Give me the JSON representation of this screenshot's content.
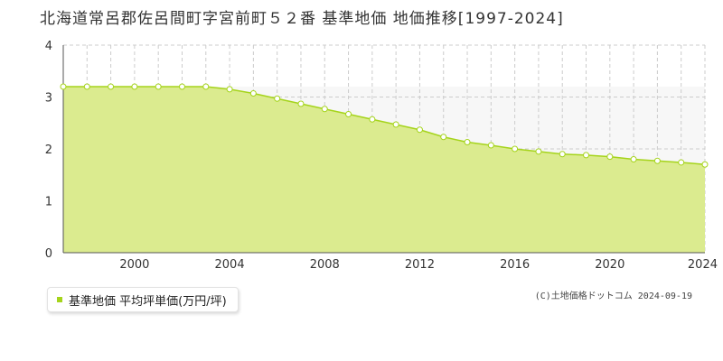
{
  "title": "北海道常呂郡佐呂間町字宮前町５２番 基準地価 地価推移[1997-2024]",
  "credit": "(C)土地価格ドットコム 2024-09-19",
  "colors": {
    "area_fill": "#dbeb8f",
    "line": "#a5d41b",
    "marker_fill": "#ffffff",
    "marker_stroke": "#a5d41b",
    "upper_band": "#f7f7f7",
    "grid": "#cccccc",
    "axis": "#555555",
    "text": "#333333"
  },
  "chart_data": {
    "type": "area",
    "title": "",
    "xlabel": "",
    "ylabel": "",
    "xlim": [
      1997,
      2024
    ],
    "ylim": [
      0,
      4
    ],
    "x_ticks": [
      "2000",
      "2004",
      "2008",
      "2012",
      "2016",
      "2020",
      "2024"
    ],
    "y_ticks": [
      "0",
      "1",
      "2",
      "3",
      "4"
    ],
    "grid": true,
    "legend_position": "bottom-left",
    "series": [
      {
        "name": "基準地価 平均坪単価(万円/坪)",
        "x": [
          1997,
          1998,
          1999,
          2000,
          2001,
          2002,
          2003,
          2004,
          2005,
          2006,
          2007,
          2008,
          2009,
          2010,
          2011,
          2012,
          2013,
          2014,
          2015,
          2016,
          2017,
          2018,
          2019,
          2020,
          2021,
          2022,
          2023,
          2024
        ],
        "values": [
          3.2,
          3.2,
          3.2,
          3.2,
          3.2,
          3.2,
          3.2,
          3.15,
          3.07,
          2.97,
          2.87,
          2.77,
          2.67,
          2.57,
          2.47,
          2.37,
          2.23,
          2.13,
          2.07,
          2.0,
          1.95,
          1.9,
          1.88,
          1.85,
          1.8,
          1.77,
          1.74,
          1.7
        ]
      }
    ]
  }
}
